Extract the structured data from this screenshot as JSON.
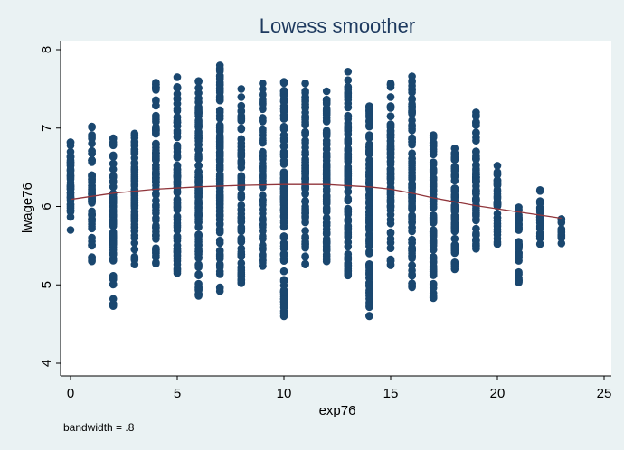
{
  "chart_data": {
    "type": "scatter",
    "title": "Lowess smoother",
    "xlabel": "exp76",
    "ylabel": "lwage76",
    "note": "bandwidth = .8",
    "xlim": [
      0,
      25
    ],
    "ylim": [
      4,
      8
    ],
    "xticks": [
      0,
      5,
      10,
      15,
      20,
      25
    ],
    "yticks": [
      4,
      5,
      6,
      7,
      8
    ],
    "grid": false,
    "legend": "none",
    "colors": {
      "background": "#eaf2f3",
      "plot_region": "#ffffff",
      "points": "#1a476f",
      "line": "#90353b",
      "title": "#1e3a5f"
    },
    "scatter_ranges": [
      {
        "x": 0,
        "ymin": 5.7,
        "ymax": 6.82
      },
      {
        "x": 1,
        "ymin": 5.3,
        "ymax": 7.02
      },
      {
        "x": 2,
        "ymin": 4.73,
        "ymax": 6.87
      },
      {
        "x": 3,
        "ymin": 5.26,
        "ymax": 6.93
      },
      {
        "x": 4,
        "ymin": 5.27,
        "ymax": 7.58
      },
      {
        "x": 5,
        "ymin": 5.15,
        "ymax": 7.65
      },
      {
        "x": 6,
        "ymin": 4.86,
        "ymax": 7.6
      },
      {
        "x": 7,
        "ymin": 4.92,
        "ymax": 7.8
      },
      {
        "x": 8,
        "ymin": 5.02,
        "ymax": 7.5
      },
      {
        "x": 9,
        "ymin": 5.24,
        "ymax": 7.57
      },
      {
        "x": 10,
        "ymin": 4.6,
        "ymax": 7.59
      },
      {
        "x": 11,
        "ymin": 5.26,
        "ymax": 7.57
      },
      {
        "x": 12,
        "ymin": 5.3,
        "ymax": 7.47
      },
      {
        "x": 13,
        "ymin": 5.12,
        "ymax": 7.72
      },
      {
        "x": 14,
        "ymin": 4.6,
        "ymax": 7.28
      },
      {
        "x": 15,
        "ymin": 5.25,
        "ymax": 7.57
      },
      {
        "x": 16,
        "ymin": 4.97,
        "ymax": 7.66
      },
      {
        "x": 17,
        "ymin": 4.83,
        "ymax": 6.91
      },
      {
        "x": 18,
        "ymin": 5.2,
        "ymax": 6.74
      },
      {
        "x": 19,
        "ymin": 5.46,
        "ymax": 7.2
      },
      {
        "x": 20,
        "ymin": 5.52,
        "ymax": 6.52
      },
      {
        "x": 21,
        "ymin": 5.03,
        "ymax": 5.99
      },
      {
        "x": 22,
        "ymin": 5.52,
        "ymax": 6.21
      },
      {
        "x": 23,
        "ymin": 5.53,
        "ymax": 5.84
      }
    ],
    "lowess": {
      "x": [
        0,
        2,
        4,
        6,
        8,
        10,
        12,
        14,
        15,
        16,
        17,
        18,
        19,
        20,
        21,
        22,
        23
      ],
      "y": [
        6.09,
        6.17,
        6.22,
        6.25,
        6.27,
        6.28,
        6.28,
        6.25,
        6.22,
        6.17,
        6.11,
        6.06,
        6.01,
        5.97,
        5.93,
        5.89,
        5.85
      ]
    }
  }
}
